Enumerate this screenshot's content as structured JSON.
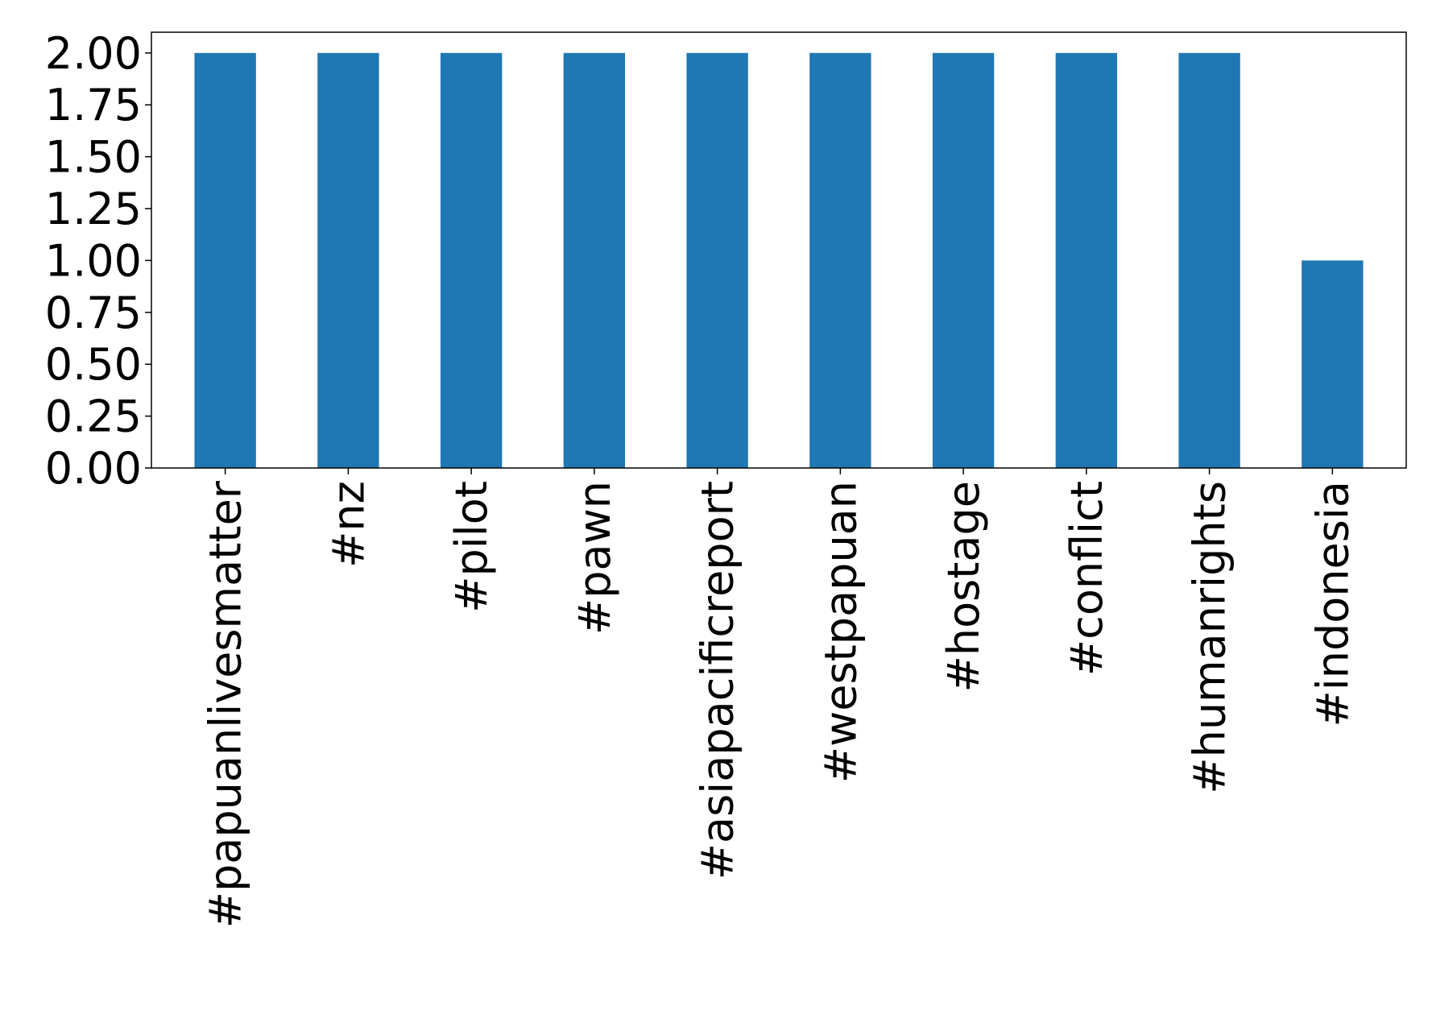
{
  "chart_data": {
    "type": "bar",
    "title": "",
    "xlabel": "",
    "ylabel": "",
    "categories": [
      "#papuanlivesmatter",
      "#nz",
      "#pilot",
      "#pawn",
      "#asiapacificreport",
      "#westpapuan",
      "#hostage",
      "#conflict",
      "#humanrights",
      "#indonesia"
    ],
    "values": [
      2,
      2,
      2,
      2,
      2,
      2,
      2,
      2,
      2,
      1
    ],
    "ylim": [
      0,
      2.1
    ],
    "yticks": [
      {
        "value": 0.0,
        "label": "0.00"
      },
      {
        "value": 0.25,
        "label": "0.25"
      },
      {
        "value": 0.5,
        "label": "0.50"
      },
      {
        "value": 0.75,
        "label": "0.75"
      },
      {
        "value": 1.0,
        "label": "1.00"
      },
      {
        "value": 1.25,
        "label": "1.25"
      },
      {
        "value": 1.5,
        "label": "1.50"
      },
      {
        "value": 1.75,
        "label": "1.75"
      },
      {
        "value": 2.0,
        "label": "2.00"
      }
    ],
    "bar_color": "#1f77b4",
    "grid": false,
    "legend": "none"
  }
}
